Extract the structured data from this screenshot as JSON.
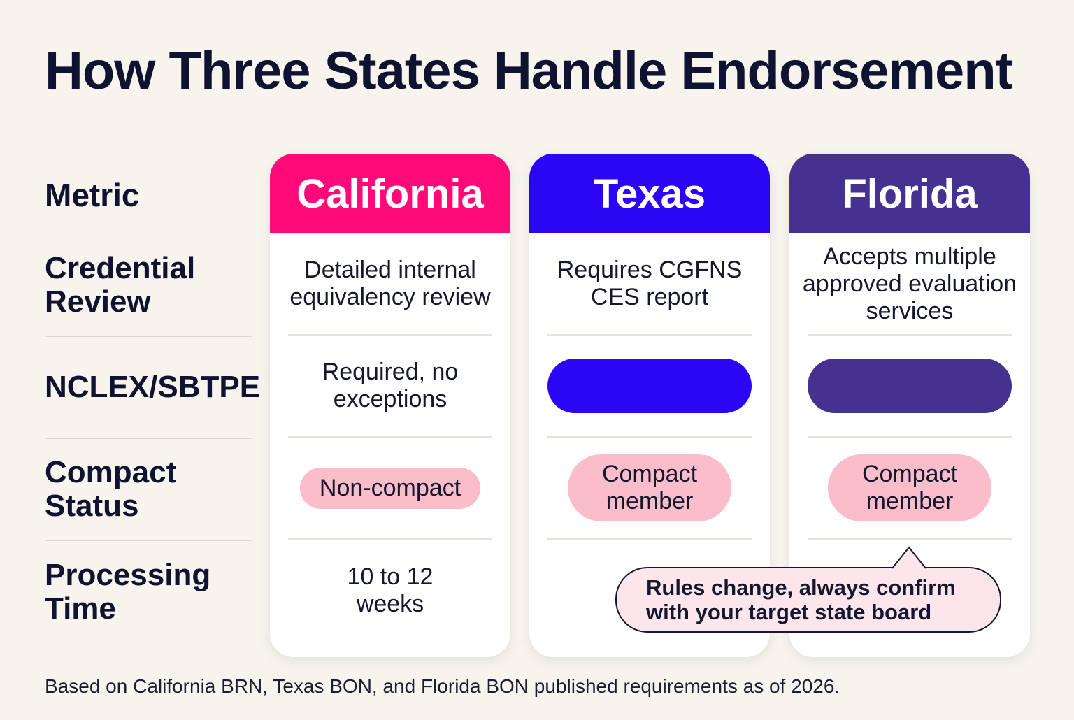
{
  "title": "How Three States Handle Endorsement",
  "metrics": {
    "header": "Metric",
    "credential_review": "Credential Review",
    "nclex": "NCLEX/SBTPE",
    "compact_status": "Compact Status",
    "processing_time": "Processing Time"
  },
  "states": {
    "california": {
      "name": "California",
      "color": "#ff0a78",
      "credential_review": "Detailed internal equivalency review",
      "nclex": "Required, no exceptions",
      "compact_status": "Non-compact",
      "processing_time": "10 to 12 weeks"
    },
    "texas": {
      "name": "Texas",
      "color": "#2b06f5",
      "credential_review": "Requires CGFNS CES report",
      "compact_status": "Compact member"
    },
    "florida": {
      "name": "Florida",
      "color": "#45318f",
      "credential_review": "Accepts multiple approved evaluation services",
      "compact_status": "Compact member"
    }
  },
  "callout": "Rules change, always confirm with your target state board",
  "footnote": "Based on California BRN, Texas BON, and Florida BON published requirements as of 2026."
}
